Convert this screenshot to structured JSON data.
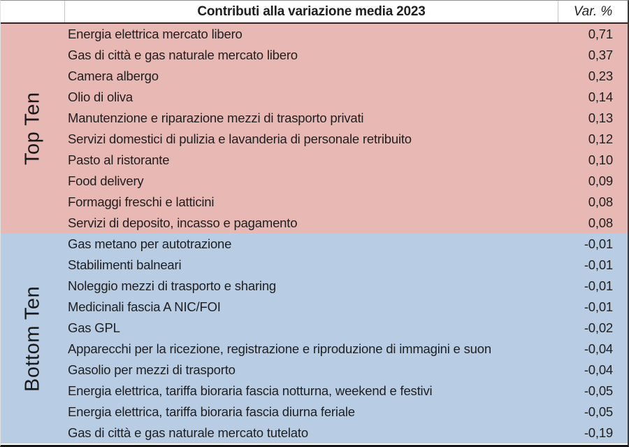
{
  "table": {
    "header": {
      "title": "Contributi alla variazione media 2023",
      "var_label": "Var. %"
    },
    "sections": [
      {
        "label": "Top Ten",
        "bg": "#e7b8b4",
        "rows": [
          {
            "label": "Energia elettrica mercato libero",
            "value": "0,71"
          },
          {
            "label": "Gas di città e gas naturale mercato libero",
            "value": "0,37"
          },
          {
            "label": "Camera albergo",
            "value": "0,23"
          },
          {
            "label": "Olio di oliva",
            "value": "0,14"
          },
          {
            "label": "Manutenzione e riparazione mezzi di trasporto privati",
            "value": "0,13"
          },
          {
            "label": "Servizi domestici di pulizia e lavanderia di personale retribuito",
            "value": "0,12"
          },
          {
            "label": "Pasto al ristorante",
            "value": "0,10"
          },
          {
            "label": "Food delivery",
            "value": "0,09"
          },
          {
            "label": "Formaggi freschi e latticini",
            "value": "0,08"
          },
          {
            "label": "Servizi di deposito, incasso e pagamento",
            "value": "0,08"
          }
        ]
      },
      {
        "label": "Bottom Ten",
        "bg": "#b8cce4",
        "rows": [
          {
            "label": "Gas metano per autotrazione",
            "value": "-0,01"
          },
          {
            "label": "Stabilimenti balneari",
            "value": "-0,01"
          },
          {
            "label": "Noleggio mezzi di trasporto e sharing",
            "value": "-0,01"
          },
          {
            "label": "Medicinali fascia A NIC/FOI",
            "value": "-0,01"
          },
          {
            "label": "Gas GPL",
            "value": "-0,02"
          },
          {
            "label": "Apparecchi per la ricezione, registrazione e riproduzione di immagini e suon",
            "value": "-0,04"
          },
          {
            "label": "Gasolio per mezzi di trasporto",
            "value": "-0,04"
          },
          {
            "label": "Energia elettrica, tariffa bioraria fascia notturna, weekend e festivi",
            "value": "-0,05"
          },
          {
            "label": "Energia elettrica, tariffa bioraria fascia diurna feriale",
            "value": "-0,05"
          },
          {
            "label": "Gas di città e gas naturale mercato tutelato",
            "value": "-0,19"
          }
        ]
      }
    ]
  },
  "colors": {
    "top_section_bg": "#e7b8b4",
    "bottom_section_bg": "#b8cce4",
    "header_bg": "#ffffff",
    "text": "#1f1f1f",
    "border_dark": "#161616",
    "border_light": "#c6c6c6"
  },
  "chart_data": {
    "type": "table",
    "title": "Contributi alla variazione media 2023",
    "ylabel": "Var. %",
    "groups": [
      {
        "name": "Top Ten",
        "categories": [
          "Energia elettrica mercato libero",
          "Gas di città e gas naturale mercato libero",
          "Camera albergo",
          "Olio di oliva",
          "Manutenzione e riparazione mezzi di trasporto privati",
          "Servizi domestici di pulizia e lavanderia di personale retribuito",
          "Pasto al ristorante",
          "Food delivery",
          "Formaggi freschi e latticini",
          "Servizi di deposito, incasso e pagamento"
        ],
        "values": [
          0.71,
          0.37,
          0.23,
          0.14,
          0.13,
          0.12,
          0.1,
          0.09,
          0.08,
          0.08
        ]
      },
      {
        "name": "Bottom Ten",
        "categories": [
          "Gas metano per autotrazione",
          "Stabilimenti balneari",
          "Noleggio mezzi di trasporto e sharing",
          "Medicinali fascia A NIC/FOI",
          "Gas GPL",
          "Apparecchi per la ricezione, registrazione e riproduzione di immagini e suon",
          "Gasolio per mezzi di trasporto",
          "Energia elettrica, tariffa bioraria fascia notturna, weekend e festivi",
          "Energia elettrica, tariffa bioraria fascia diurna feriale",
          "Gas di città e gas naturale mercato tutelato"
        ],
        "values": [
          -0.01,
          -0.01,
          -0.01,
          -0.01,
          -0.02,
          -0.04,
          -0.04,
          -0.05,
          -0.05,
          -0.19
        ]
      }
    ]
  }
}
